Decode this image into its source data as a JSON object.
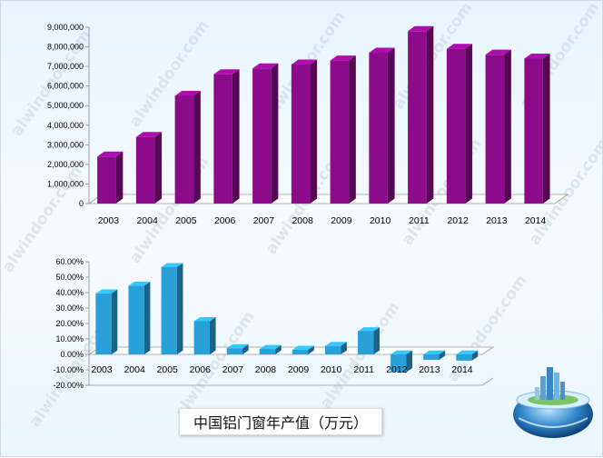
{
  "chart_data": [
    {
      "type": "bar",
      "categories": [
        "2003",
        "2004",
        "2005",
        "2006",
        "2007",
        "2008",
        "2009",
        "2010",
        "2011",
        "2012",
        "2013",
        "2014"
      ],
      "values": [
        2400000,
        3400000,
        5500000,
        6600000,
        6900000,
        7100000,
        7300000,
        7700000,
        8800000,
        7900000,
        7600000,
        7400000
      ],
      "ylim": [
        0,
        9000000
      ],
      "yticks": [
        "0",
        "1,000,000",
        "2,000,000",
        "3,000,000",
        "4,000,000",
        "5,000,000",
        "6,000,000",
        "7,000,000",
        "8,000,000",
        "9,000,000"
      ],
      "color": "#8b0b8b"
    },
    {
      "type": "bar",
      "categories": [
        "2003",
        "2004",
        "2005",
        "2006",
        "2007",
        "2008",
        "2009",
        "2010",
        "2011",
        "2012",
        "2013",
        "2014"
      ],
      "values": [
        39.5,
        44.5,
        56.5,
        21.5,
        4.0,
        3.5,
        3.0,
        5.5,
        15.0,
        -11.5,
        -3.5,
        -4.0
      ],
      "ylim": [
        -20,
        60
      ],
      "yticks": [
        "-20.00%",
        "-10.00%",
        "0.00%",
        "10.00%",
        "20.00%",
        "30.00%",
        "40.00%",
        "50.00%",
        "60.00%"
      ],
      "color": "#2aa0d8"
    }
  ],
  "caption": "中国铝门窗年产值（万元）",
  "watermark": "alwindoor.com",
  "decor": {
    "globe_icon": "globe-city-icon"
  }
}
